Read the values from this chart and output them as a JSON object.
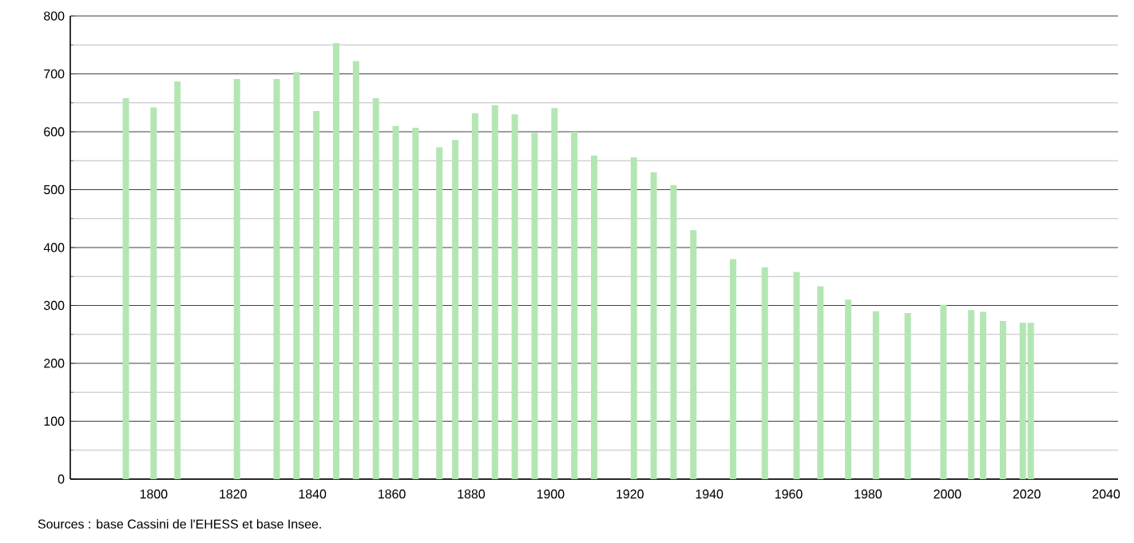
{
  "chart_data": {
    "type": "bar",
    "color": "#b3e6b3",
    "x": [
      1793,
      1800,
      1806,
      1821,
      1831,
      1836,
      1841,
      1846,
      1851,
      1856,
      1861,
      1866,
      1872,
      1876,
      1881,
      1886,
      1891,
      1896,
      1901,
      1906,
      1911,
      1921,
      1926,
      1931,
      1936,
      1946,
      1954,
      1962,
      1968,
      1975,
      1982,
      1990,
      1999,
      2006,
      2009,
      2014,
      2019,
      2021
    ],
    "values": [
      658,
      642,
      687,
      691,
      691,
      703,
      636,
      753,
      722,
      658,
      610,
      607,
      573,
      586,
      632,
      646,
      630,
      598,
      641,
      600,
      559,
      556,
      530,
      508,
      430,
      380,
      366,
      358,
      333,
      310,
      290,
      287,
      301,
      292,
      289,
      273,
      270,
      270
    ],
    "xlim": [
      1779,
      2043
    ],
    "ylim": [
      0,
      800
    ],
    "xticks": [
      1800,
      1820,
      1840,
      1860,
      1880,
      1900,
      1920,
      1940,
      1960,
      1980,
      2000,
      2020,
      2040
    ],
    "yticks": [
      0,
      100,
      200,
      300,
      400,
      500,
      600,
      700,
      800
    ],
    "grid": "y",
    "annotations": [
      "Sources : base Cassini de l'EHESS et base Insee."
    ]
  }
}
